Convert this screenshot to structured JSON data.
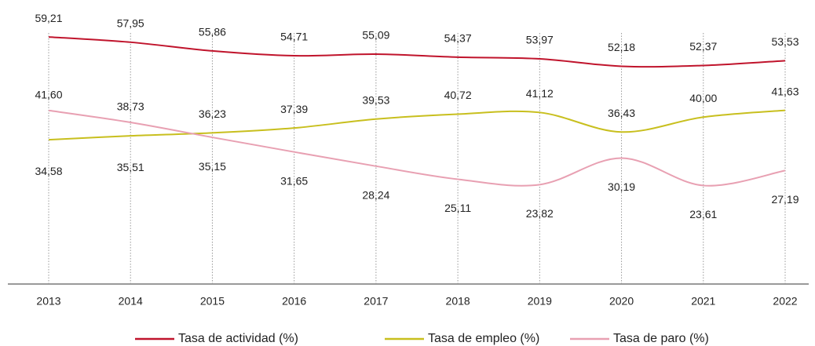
{
  "chart_data": {
    "type": "line",
    "categories": [
      "2013",
      "2014",
      "2015",
      "2016",
      "2017",
      "2018",
      "2019",
      "2020",
      "2021",
      "2022"
    ],
    "ylim": [
      0,
      66
    ],
    "legend": "bottom",
    "series": [
      {
        "name": "Tasa de actividad (%)",
        "color": "#c0142c",
        "values": [
          59.21,
          57.95,
          55.86,
          54.71,
          55.09,
          54.37,
          53.97,
          52.18,
          52.37,
          53.53
        ],
        "value_labels": [
          "59,21",
          "57,95",
          "55,86",
          "54,71",
          "55,09",
          "54,37",
          "53,97",
          "52,18",
          "52,37",
          "53,53"
        ]
      },
      {
        "name": "Tasa de empleo (%)",
        "color": "#c8bf1e",
        "values": [
          34.58,
          35.51,
          36.23,
          37.39,
          39.53,
          40.72,
          41.12,
          36.43,
          40.0,
          41.63
        ],
        "value_labels": [
          "34,58",
          "35,51",
          "36,23",
          "37,39",
          "39,53",
          "40,72",
          "41,12",
          "36,43",
          "40,00",
          "41,63"
        ]
      },
      {
        "name": "Tasa de paro (%)",
        "color": "#e8a0b2",
        "values": [
          41.6,
          38.73,
          35.15,
          31.65,
          28.24,
          25.11,
          23.82,
          30.19,
          23.61,
          27.19
        ],
        "value_labels": [
          "41,60",
          "38,73",
          "35,15",
          "31,65",
          "28,24",
          "25,11",
          "23,82",
          "30,19",
          "23,61",
          "27,19"
        ]
      }
    ]
  }
}
